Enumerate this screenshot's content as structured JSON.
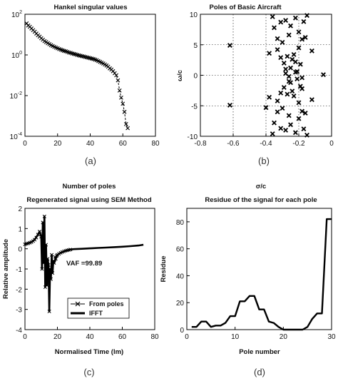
{
  "chart_data": [
    {
      "id": "a",
      "type": "scatter",
      "title": "Hankel singular values",
      "caption": "(a)",
      "xlim": [
        0,
        80
      ],
      "ylim": [
        -4,
        2
      ],
      "yscale": "log",
      "xticks": [
        0,
        20,
        40,
        60,
        80
      ],
      "yticks": [
        -4,
        -2,
        0,
        2
      ],
      "ytick_base": "10",
      "grid": false,
      "marker": "x",
      "x": [
        1,
        2,
        3,
        4,
        5,
        6,
        7,
        8,
        9,
        10,
        11,
        12,
        13,
        14,
        15,
        16,
        17,
        18,
        19,
        20,
        21,
        22,
        23,
        24,
        25,
        26,
        27,
        28,
        29,
        30,
        31,
        32,
        33,
        34,
        35,
        36,
        37,
        38,
        39,
        40,
        41,
        42,
        43,
        44,
        45,
        46,
        47,
        48,
        49,
        50,
        51,
        52,
        53,
        54,
        55,
        56,
        57,
        58,
        59,
        60,
        61,
        62,
        63
      ],
      "y": [
        1.55,
        1.45,
        1.38,
        1.3,
        1.22,
        1.14,
        1.05,
        0.97,
        0.9,
        0.82,
        0.75,
        0.68,
        0.63,
        0.58,
        0.53,
        0.48,
        0.44,
        0.4,
        0.36,
        0.33,
        0.29,
        0.26,
        0.23,
        0.2,
        0.18,
        0.15,
        0.12,
        0.1,
        0.07,
        0.05,
        0.03,
        0.0,
        -0.02,
        -0.04,
        -0.06,
        -0.08,
        -0.1,
        -0.12,
        -0.14,
        -0.16,
        -0.18,
        -0.2,
        -0.23,
        -0.26,
        -0.3,
        -0.34,
        -0.38,
        -0.42,
        -0.47,
        -0.52,
        -0.58,
        -0.66,
        -0.72,
        -0.8,
        -0.9,
        -1.0,
        -1.25,
        -1.75,
        -2.1,
        -2.4,
        -2.8,
        -3.4,
        -3.6
      ]
    },
    {
      "id": "b",
      "type": "scatter",
      "title": "Poles of Basic Aircraft",
      "caption": "(b)",
      "ylabel": "ω/c",
      "xlim": [
        -0.8,
        0
      ],
      "ylim": [
        -10,
        10
      ],
      "xticks": [
        -0.8,
        -0.6,
        -0.4,
        -0.2,
        0
      ],
      "yticks": [
        -10,
        -5,
        0,
        5,
        10
      ],
      "grid": true,
      "marker": "x",
      "x": [
        -0.62,
        -0.62,
        -0.05,
        -0.4,
        -0.36,
        -0.35,
        -0.33,
        -0.31,
        -0.3,
        -0.28,
        -0.26,
        -0.25,
        -0.22,
        -0.2,
        -0.18,
        -0.17,
        -0.16,
        -0.15,
        -0.36,
        -0.35,
        -0.33,
        -0.31,
        -0.3,
        -0.28,
        -0.26,
        -0.25,
        -0.22,
        -0.2,
        -0.18,
        -0.17,
        -0.16,
        -0.15,
        -0.29,
        -0.27,
        -0.25,
        -0.24,
        -0.21,
        -0.19,
        -0.29,
        -0.27,
        -0.25,
        -0.24,
        -0.21,
        -0.19,
        -0.38,
        -0.33,
        -0.31,
        -0.23,
        -0.2,
        -0.12,
        -0.38,
        -0.33,
        -0.31,
        -0.23,
        -0.2,
        -0.12,
        -0.28,
        -0.26,
        -0.22,
        -0.18,
        -0.28,
        -0.26,
        -0.22,
        -0.18
      ],
      "y": [
        4.9,
        -4.9,
        0.1,
        -5.3,
        9.6,
        7.8,
        6.0,
        8.7,
        5.4,
        9.0,
        6.6,
        8.1,
        9.4,
        7.1,
        5.9,
        8.8,
        6.2,
        9.8,
        -9.6,
        -7.8,
        -6.0,
        -8.7,
        -5.4,
        -9.0,
        -6.6,
        -8.1,
        -9.4,
        -7.1,
        -5.9,
        -8.8,
        -6.2,
        -9.8,
        2.0,
        3.1,
        1.2,
        2.6,
        0.6,
        1.8,
        -2.0,
        -3.1,
        -1.2,
        -2.6,
        -0.6,
        -1.8,
        3.6,
        4.2,
        2.9,
        3.4,
        4.5,
        4.0,
        -3.6,
        -4.2,
        -2.9,
        -3.4,
        -4.5,
        -4.0,
        0.3,
        -0.2,
        0.5,
        -0.4,
        1.0,
        -1.0,
        2.2,
        -2.2
      ]
    },
    {
      "id": "c",
      "type": "line",
      "title": "Regenerated signal using SEM Method",
      "title_top": "Number of poles",
      "caption": "(c)",
      "xlabel": "Normalised Time (lm)",
      "ylabel": "Relative amplitude",
      "xlim": [
        0,
        80
      ],
      "ylim": [
        -4,
        2
      ],
      "xticks": [
        0,
        20,
        40,
        60,
        80
      ],
      "yticks": [
        -4,
        -3,
        -2,
        -1,
        0,
        1,
        2
      ],
      "grid": false,
      "annotation": "VAF =99.89",
      "legend": "bottom-right",
      "series": [
        {
          "name": "From poles",
          "style": "line-x",
          "x": [
            0,
            1,
            2,
            3,
            4,
            5,
            6,
            7,
            8,
            9,
            10,
            10.5,
            11,
            11.5,
            12,
            12.5,
            13,
            13.5,
            14,
            14.5,
            15,
            15.5,
            16,
            16.5,
            17,
            17.5,
            18,
            18.5,
            19,
            19.5,
            20,
            21,
            22,
            23,
            24,
            25,
            26,
            27,
            28
          ],
          "y": [
            0.22,
            0.25,
            0.27,
            0.3,
            0.33,
            0.38,
            0.45,
            0.55,
            0.7,
            0.85,
            0.6,
            -1.0,
            1.3,
            -0.7,
            1.6,
            -1.9,
            0.2,
            -1.8,
            -0.5,
            -0.8,
            -3.1,
            -1.0,
            -1.5,
            -0.3,
            -1.2,
            -0.6,
            -0.7,
            -0.4,
            -0.5,
            -0.35,
            -0.3,
            -0.25,
            -0.2,
            -0.16,
            -0.13,
            -0.1,
            -0.08,
            -0.06,
            -0.04
          ]
        },
        {
          "name": "IFFT",
          "style": "line",
          "x": [
            0,
            2,
            4,
            6,
            8,
            9,
            10,
            10.5,
            11,
            11.5,
            12,
            12.5,
            13,
            13.5,
            14,
            14.5,
            15,
            15.5,
            16,
            16.5,
            17,
            17.5,
            18,
            19,
            20,
            22,
            24,
            26,
            28,
            30,
            35,
            40,
            45,
            50,
            55,
            60,
            65,
            70,
            73
          ],
          "y": [
            0.22,
            0.27,
            0.33,
            0.45,
            0.7,
            0.85,
            0.6,
            -1.0,
            1.3,
            -0.7,
            1.6,
            -1.9,
            0.2,
            -1.8,
            -0.5,
            -0.8,
            -3.1,
            -1.0,
            -1.5,
            -0.3,
            -1.2,
            -0.6,
            -0.7,
            -0.5,
            -0.3,
            -0.2,
            -0.13,
            -0.08,
            -0.04,
            -0.02,
            0.0,
            0.02,
            0.04,
            0.06,
            0.08,
            0.1,
            0.13,
            0.16,
            0.2
          ]
        }
      ]
    },
    {
      "id": "d",
      "type": "line",
      "title": "Residue of the signal for each pole",
      "title_top": "σ/c",
      "caption": "(d)",
      "xlabel": "Pole number",
      "ylabel": "Residue",
      "xlim": [
        0,
        30
      ],
      "ylim": [
        0,
        90
      ],
      "xticks": [
        0,
        10,
        20,
        30
      ],
      "yticks": [
        0,
        20,
        40,
        60,
        80
      ],
      "grid": false,
      "x": [
        1,
        2,
        3,
        4,
        5,
        6,
        7,
        8,
        9,
        10,
        11,
        12,
        13,
        14,
        15,
        16,
        17,
        18,
        19,
        20,
        21,
        22,
        23,
        24,
        25,
        26,
        27,
        28,
        29,
        30
      ],
      "y": [
        2,
        2,
        6,
        6,
        2,
        3,
        3,
        5,
        10,
        10,
        21,
        21,
        25,
        25,
        15,
        15,
        6,
        5,
        2,
        0,
        0,
        0,
        0,
        0,
        2,
        8,
        12,
        12,
        82,
        82
      ]
    }
  ]
}
